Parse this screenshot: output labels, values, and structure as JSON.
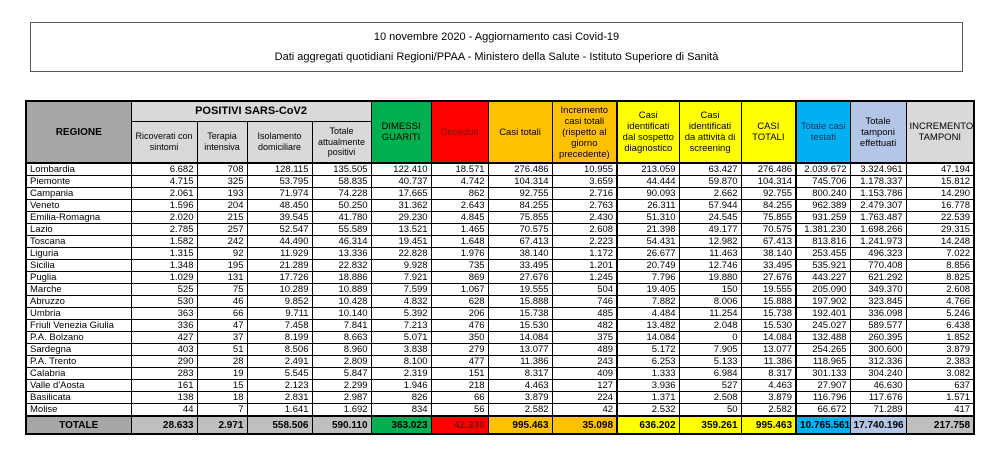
{
  "header": {
    "line1": "10 novembre 2020 - Aggiornamento casi Covid-19",
    "line2": "Dati aggregati quotidiani Regioni/PPAA - Ministero della Salute - Istituto Superiore di Sanità"
  },
  "colors": {
    "green": "#00B050",
    "red": "#FF0000",
    "orange": "#FFC000",
    "yellow": "#FFFF00",
    "cyan": "#00B0F0",
    "periwinkle": "#B4C6E7",
    "gray_header": "#A6A6A6",
    "gray_total_cells": "#BFBFBF",
    "gray_light": "#D9D9D9",
    "deceduti_text": "#7F1010"
  },
  "table": {
    "region_header": "REGIONE",
    "group_header": "POSITIVI SARS-CoV2",
    "columns": [
      "Ricoverati con sintomi",
      "Terapia intensiva",
      "Isolamento domiciliare",
      "Totale attualmente positivi",
      "DIMESSI GUARITI",
      "Deceduti",
      "Casi totali",
      "Incremento casi totali (rispetto al giorno precedente)",
      "Casi identificati dal sospetto diagnostico",
      "Casi identificati da attività di screening",
      "CASI TOTALI",
      "Totale casi testati",
      "Totale tamponi effettuati",
      "INCREMENTO TAMPONI"
    ],
    "rows": [
      {
        "name": "Lombardia",
        "values": [
          "6.682",
          "708",
          "128.115",
          "135.505",
          "122.410",
          "18.571",
          "276.486",
          "10.955",
          "213.059",
          "63.427",
          "276.486",
          "2.039.672",
          "3.324.961",
          "47.194"
        ]
      },
      {
        "name": "Piemonte",
        "values": [
          "4.715",
          "325",
          "53.795",
          "58.835",
          "40.737",
          "4.742",
          "104.314",
          "3.659",
          "44.444",
          "59.870",
          "104.314",
          "745.706",
          "1.178.337",
          "15.812"
        ]
      },
      {
        "name": "Campania",
        "values": [
          "2.061",
          "193",
          "71.974",
          "74.228",
          "17.665",
          "862",
          "92.755",
          "2.716",
          "90.093",
          "2.662",
          "92.755",
          "800.240",
          "1.153.786",
          "14.290"
        ]
      },
      {
        "name": "Veneto",
        "values": [
          "1.596",
          "204",
          "48.450",
          "50.250",
          "31.362",
          "2.643",
          "84.255",
          "2.763",
          "26.311",
          "57.944",
          "84.255",
          "962.389",
          "2.479.307",
          "16.778"
        ]
      },
      {
        "name": "Emilia-Romagna",
        "values": [
          "2.020",
          "215",
          "39.545",
          "41.780",
          "29.230",
          "4.845",
          "75.855",
          "2.430",
          "51.310",
          "24.545",
          "75.855",
          "931.259",
          "1.763.487",
          "22.539"
        ]
      },
      {
        "name": "Lazio",
        "values": [
          "2.785",
          "257",
          "52.547",
          "55.589",
          "13.521",
          "1.465",
          "70.575",
          "2.608",
          "21.398",
          "49.177",
          "70.575",
          "1.381.230",
          "1.698.266",
          "29.315"
        ]
      },
      {
        "name": "Toscana",
        "values": [
          "1.582",
          "242",
          "44.490",
          "46.314",
          "19.451",
          "1.648",
          "67.413",
          "2.223",
          "54.431",
          "12.982",
          "67.413",
          "813.816",
          "1.241.973",
          "14.248"
        ]
      },
      {
        "name": "Liguria",
        "values": [
          "1.315",
          "92",
          "11.929",
          "13.336",
          "22.828",
          "1.976",
          "38.140",
          "1.172",
          "26.677",
          "11.463",
          "38.140",
          "253.455",
          "496.323",
          "7.022"
        ]
      },
      {
        "name": "Sicilia",
        "values": [
          "1.348",
          "195",
          "21.289",
          "22.832",
          "9.928",
          "735",
          "33.495",
          "1.201",
          "20.749",
          "12.746",
          "33.495",
          "535.921",
          "770.408",
          "8.856"
        ]
      },
      {
        "name": "Puglia",
        "values": [
          "1.029",
          "131",
          "17.726",
          "18.886",
          "7.921",
          "869",
          "27.676",
          "1.245",
          "7.796",
          "19.880",
          "27.676",
          "443.227",
          "621.292",
          "8.825"
        ]
      },
      {
        "name": "Marche",
        "values": [
          "525",
          "75",
          "10.289",
          "10.889",
          "7.599",
          "1.067",
          "19.555",
          "504",
          "19.405",
          "150",
          "19.555",
          "205.090",
          "349.370",
          "2.608"
        ]
      },
      {
        "name": "Abruzzo",
        "values": [
          "530",
          "46",
          "9.852",
          "10.428",
          "4.832",
          "628",
          "15.888",
          "746",
          "7.882",
          "8.006",
          "15.888",
          "197.902",
          "323.845",
          "4.766"
        ]
      },
      {
        "name": "Umbria",
        "values": [
          "363",
          "66",
          "9.711",
          "10.140",
          "5.392",
          "206",
          "15.738",
          "485",
          "4.484",
          "11.254",
          "15.738",
          "192.401",
          "336.098",
          "5.246"
        ]
      },
      {
        "name": "Friuli Venezia Giulia",
        "values": [
          "336",
          "47",
          "7.458",
          "7.841",
          "7.213",
          "476",
          "15.530",
          "482",
          "13.482",
          "2.048",
          "15.530",
          "245.027",
          "589.577",
          "6.438"
        ]
      },
      {
        "name": "P.A. Bolzano",
        "values": [
          "427",
          "37",
          "8.199",
          "8.663",
          "5.071",
          "350",
          "14.084",
          "375",
          "14.084",
          "0",
          "14.084",
          "132.488",
          "260.395",
          "1.852"
        ]
      },
      {
        "name": "Sardegna",
        "values": [
          "403",
          "51",
          "8.506",
          "8.960",
          "3.838",
          "279",
          "13.077",
          "489",
          "5.172",
          "7.905",
          "13.077",
          "254.265",
          "300.600",
          "3.879"
        ]
      },
      {
        "name": "P.A. Trento",
        "values": [
          "290",
          "28",
          "2.491",
          "2.809",
          "8.100",
          "477",
          "11.386",
          "243",
          "6.253",
          "5.133",
          "11.386",
          "118.965",
          "312.336",
          "2.383"
        ]
      },
      {
        "name": "Calabria",
        "values": [
          "283",
          "19",
          "5.545",
          "5.847",
          "2.319",
          "151",
          "8.317",
          "409",
          "1.333",
          "6.984",
          "8.317",
          "301.133",
          "304.240",
          "3.082"
        ]
      },
      {
        "name": "Valle d'Aosta",
        "values": [
          "161",
          "15",
          "2.123",
          "2.299",
          "1.946",
          "218",
          "4.463",
          "127",
          "3.936",
          "527",
          "4.463",
          "27.907",
          "46.630",
          "637"
        ]
      },
      {
        "name": "Basilicata",
        "values": [
          "138",
          "18",
          "2.831",
          "2.987",
          "826",
          "66",
          "3.879",
          "224",
          "1.371",
          "2.508",
          "3.879",
          "116.796",
          "117.676",
          "1.571"
        ]
      },
      {
        "name": "Molise",
        "values": [
          "44",
          "7",
          "1.641",
          "1.692",
          "834",
          "56",
          "2.582",
          "42",
          "2.532",
          "50",
          "2.582",
          "66.672",
          "71.289",
          "417"
        ]
      }
    ],
    "total": {
      "name": "TOTALE",
      "values": [
        "28.633",
        "2.971",
        "558.506",
        "590.110",
        "363.023",
        "42.330",
        "995.463",
        "35.098",
        "636.202",
        "359.261",
        "995.463",
        "10.765.561",
        "17.740.196",
        "217.758"
      ]
    }
  }
}
